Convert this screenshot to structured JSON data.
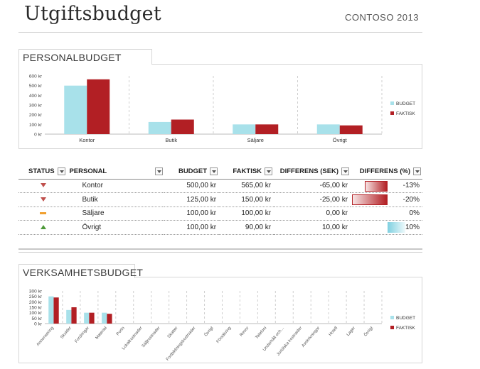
{
  "header": {
    "title": "Utgiftsbudget",
    "company": "CONTOSO 2013"
  },
  "personal": {
    "heading": "PERSONALBUDGET",
    "chart_data": {
      "type": "bar",
      "categories": [
        "Kontor",
        "Butik",
        "Säljare",
        "Övrigt"
      ],
      "series": [
        {
          "name": "BUDGET",
          "values": [
            500,
            125,
            100,
            100
          ],
          "color": "#a8e1ea"
        },
        {
          "name": "FAKTISK",
          "values": [
            565,
            150,
            100,
            90
          ],
          "color": "#b21f24"
        }
      ],
      "ylim": [
        0,
        600
      ],
      "yticks": [
        "0 kr",
        "100 kr",
        "200 kr",
        "300 kr",
        "400 kr",
        "500 kr",
        "600 kr"
      ],
      "legend": "right"
    }
  },
  "table": {
    "headers": {
      "status": "STATUS",
      "personal": "PERSONAL",
      "budget": "BUDGET",
      "faktisk": "FAKTISK",
      "diff_sek": "DIFFERENS (SEK)",
      "diff_pct": "DIFFERENS (%)"
    },
    "rows": [
      {
        "status": "down",
        "name": "Kontor",
        "budget": "500,00 kr",
        "faktisk": "565,00 kr",
        "diff": "-65,00 kr",
        "pct": "-13%",
        "pct_value": -13
      },
      {
        "status": "down",
        "name": "Butik",
        "budget": "125,00 kr",
        "faktisk": "150,00 kr",
        "diff": "-25,00 kr",
        "pct": "-20%",
        "pct_value": -20
      },
      {
        "status": "neutral",
        "name": "Säljare",
        "budget": "100,00 kr",
        "faktisk": "100,00 kr",
        "diff": "0,00 kr",
        "pct": "0%",
        "pct_value": 0
      },
      {
        "status": "up",
        "name": "Övrigt",
        "budget": "100,00 kr",
        "faktisk": "90,00 kr",
        "diff": "10,00 kr",
        "pct": "10%",
        "pct_value": 10
      }
    ]
  },
  "verksamhet": {
    "heading": "VERKSAMHETSBUDGET",
    "chart_data": {
      "type": "bar",
      "categories": [
        "Annonsering",
        "Skulder",
        "Fordringar",
        "Material",
        "Porto",
        "Lokalkostnader",
        "Säljkostnader",
        "Skatter",
        "Fortbildningskostnader",
        "Övrigt",
        "Försäkring",
        "Resor",
        "Telefoni",
        "Underhåll och…",
        "Juridiska kostnader",
        "Avskrivningar",
        "Hotell",
        "Lager",
        "Övrigt"
      ],
      "series": [
        {
          "name": "BUDGET",
          "values": [
            250,
            125,
            100,
            100,
            0,
            0,
            0,
            0,
            0,
            0,
            0,
            0,
            0,
            0,
            0,
            0,
            0,
            0,
            0
          ],
          "color": "#a8e1ea"
        },
        {
          "name": "FAKTISK",
          "values": [
            240,
            150,
            100,
            90,
            0,
            0,
            0,
            0,
            0,
            0,
            0,
            0,
            0,
            0,
            0,
            0,
            0,
            0,
            0
          ],
          "color": "#b21f24"
        }
      ],
      "ylim": [
        0,
        300
      ],
      "yticks": [
        "0 kr",
        "50 kr",
        "100 kr",
        "150 kr",
        "200 kr",
        "250 kr",
        "300 kr"
      ],
      "legend": "right"
    }
  }
}
